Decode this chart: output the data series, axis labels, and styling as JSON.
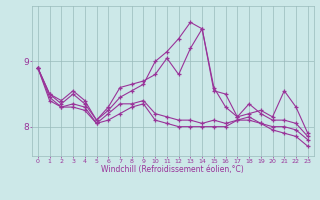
{
  "xlabel": "Windchill (Refroidissement éolien,°C)",
  "background_color": "#cce8e8",
  "line_color": "#993399",
  "grid_color": "#99bbbb",
  "x": [
    0,
    1,
    2,
    3,
    4,
    5,
    6,
    7,
    8,
    9,
    10,
    11,
    12,
    13,
    14,
    15,
    16,
    17,
    18,
    19,
    20,
    21,
    22,
    23
  ],
  "line1": [
    8.9,
    8.5,
    8.4,
    8.55,
    8.4,
    8.1,
    8.3,
    8.6,
    8.65,
    8.7,
    8.8,
    9.05,
    8.8,
    9.2,
    9.5,
    8.6,
    8.3,
    8.15,
    8.2,
    8.25,
    8.15,
    8.55,
    8.3,
    7.9
  ],
  "line2": [
    8.9,
    8.5,
    8.35,
    8.5,
    8.35,
    8.1,
    8.25,
    8.45,
    8.55,
    8.65,
    9.0,
    9.15,
    9.35,
    9.6,
    9.5,
    8.55,
    8.5,
    8.15,
    8.35,
    8.2,
    8.1,
    8.1,
    8.05,
    7.85
  ],
  "line3": [
    8.9,
    8.4,
    8.3,
    8.3,
    8.25,
    8.05,
    8.1,
    8.2,
    8.3,
    8.35,
    8.1,
    8.05,
    8.0,
    8.0,
    8.0,
    8.0,
    8.0,
    8.1,
    8.1,
    8.05,
    7.95,
    7.9,
    7.85,
    7.7
  ],
  "line4": [
    8.9,
    8.45,
    8.3,
    8.35,
    8.3,
    8.05,
    8.2,
    8.35,
    8.35,
    8.4,
    8.2,
    8.15,
    8.1,
    8.1,
    8.05,
    8.1,
    8.05,
    8.1,
    8.15,
    8.05,
    8.0,
    8.0,
    7.95,
    7.8
  ],
  "yticks": [
    8,
    9
  ],
  "ylim": [
    7.55,
    9.85
  ],
  "xlim": [
    -0.5,
    23.5
  ]
}
